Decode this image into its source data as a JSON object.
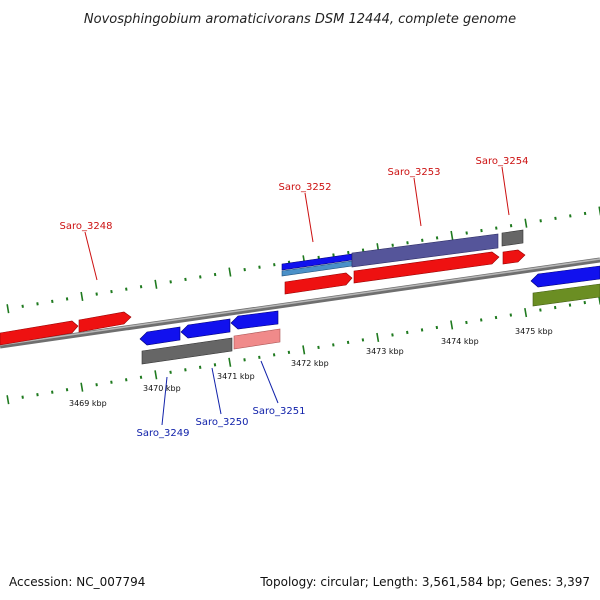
{
  "title": "Novosphingobium aromaticivorans DSM 12444, complete genome",
  "footer": {
    "accession": "Accession: NC_007794",
    "topology": "Topology: circular; Length: 3,561,584 bp; Genes: 3,397"
  },
  "colors": {
    "backbone": "#8a8a8a",
    "tick": "#1f7a1f",
    "forward_label": "#cc1111",
    "reverse_label": "#1122aa",
    "red_gene": "#ee1111",
    "blue_gene": "#1111ee",
    "gray_gene": "#666666",
    "purple_gene": "#55559a",
    "lightblue_gene": "#4a90c8",
    "pink_gene": "#f08a8a",
    "green_gene": "#6b8e23"
  },
  "scale": {
    "tick_labels": [
      "3469 kbp",
      "3470 kbp",
      "3471 kbp",
      "3472 kbp",
      "3473 kbp",
      "3474 kbp",
      "3475 kbp"
    ]
  },
  "gene_labels": {
    "forward": [
      "Saro_3248",
      "Saro_3252",
      "Saro_3253",
      "Saro_3254"
    ],
    "reverse": [
      "Saro_3249",
      "Saro_3250",
      "Saro_3251"
    ]
  }
}
